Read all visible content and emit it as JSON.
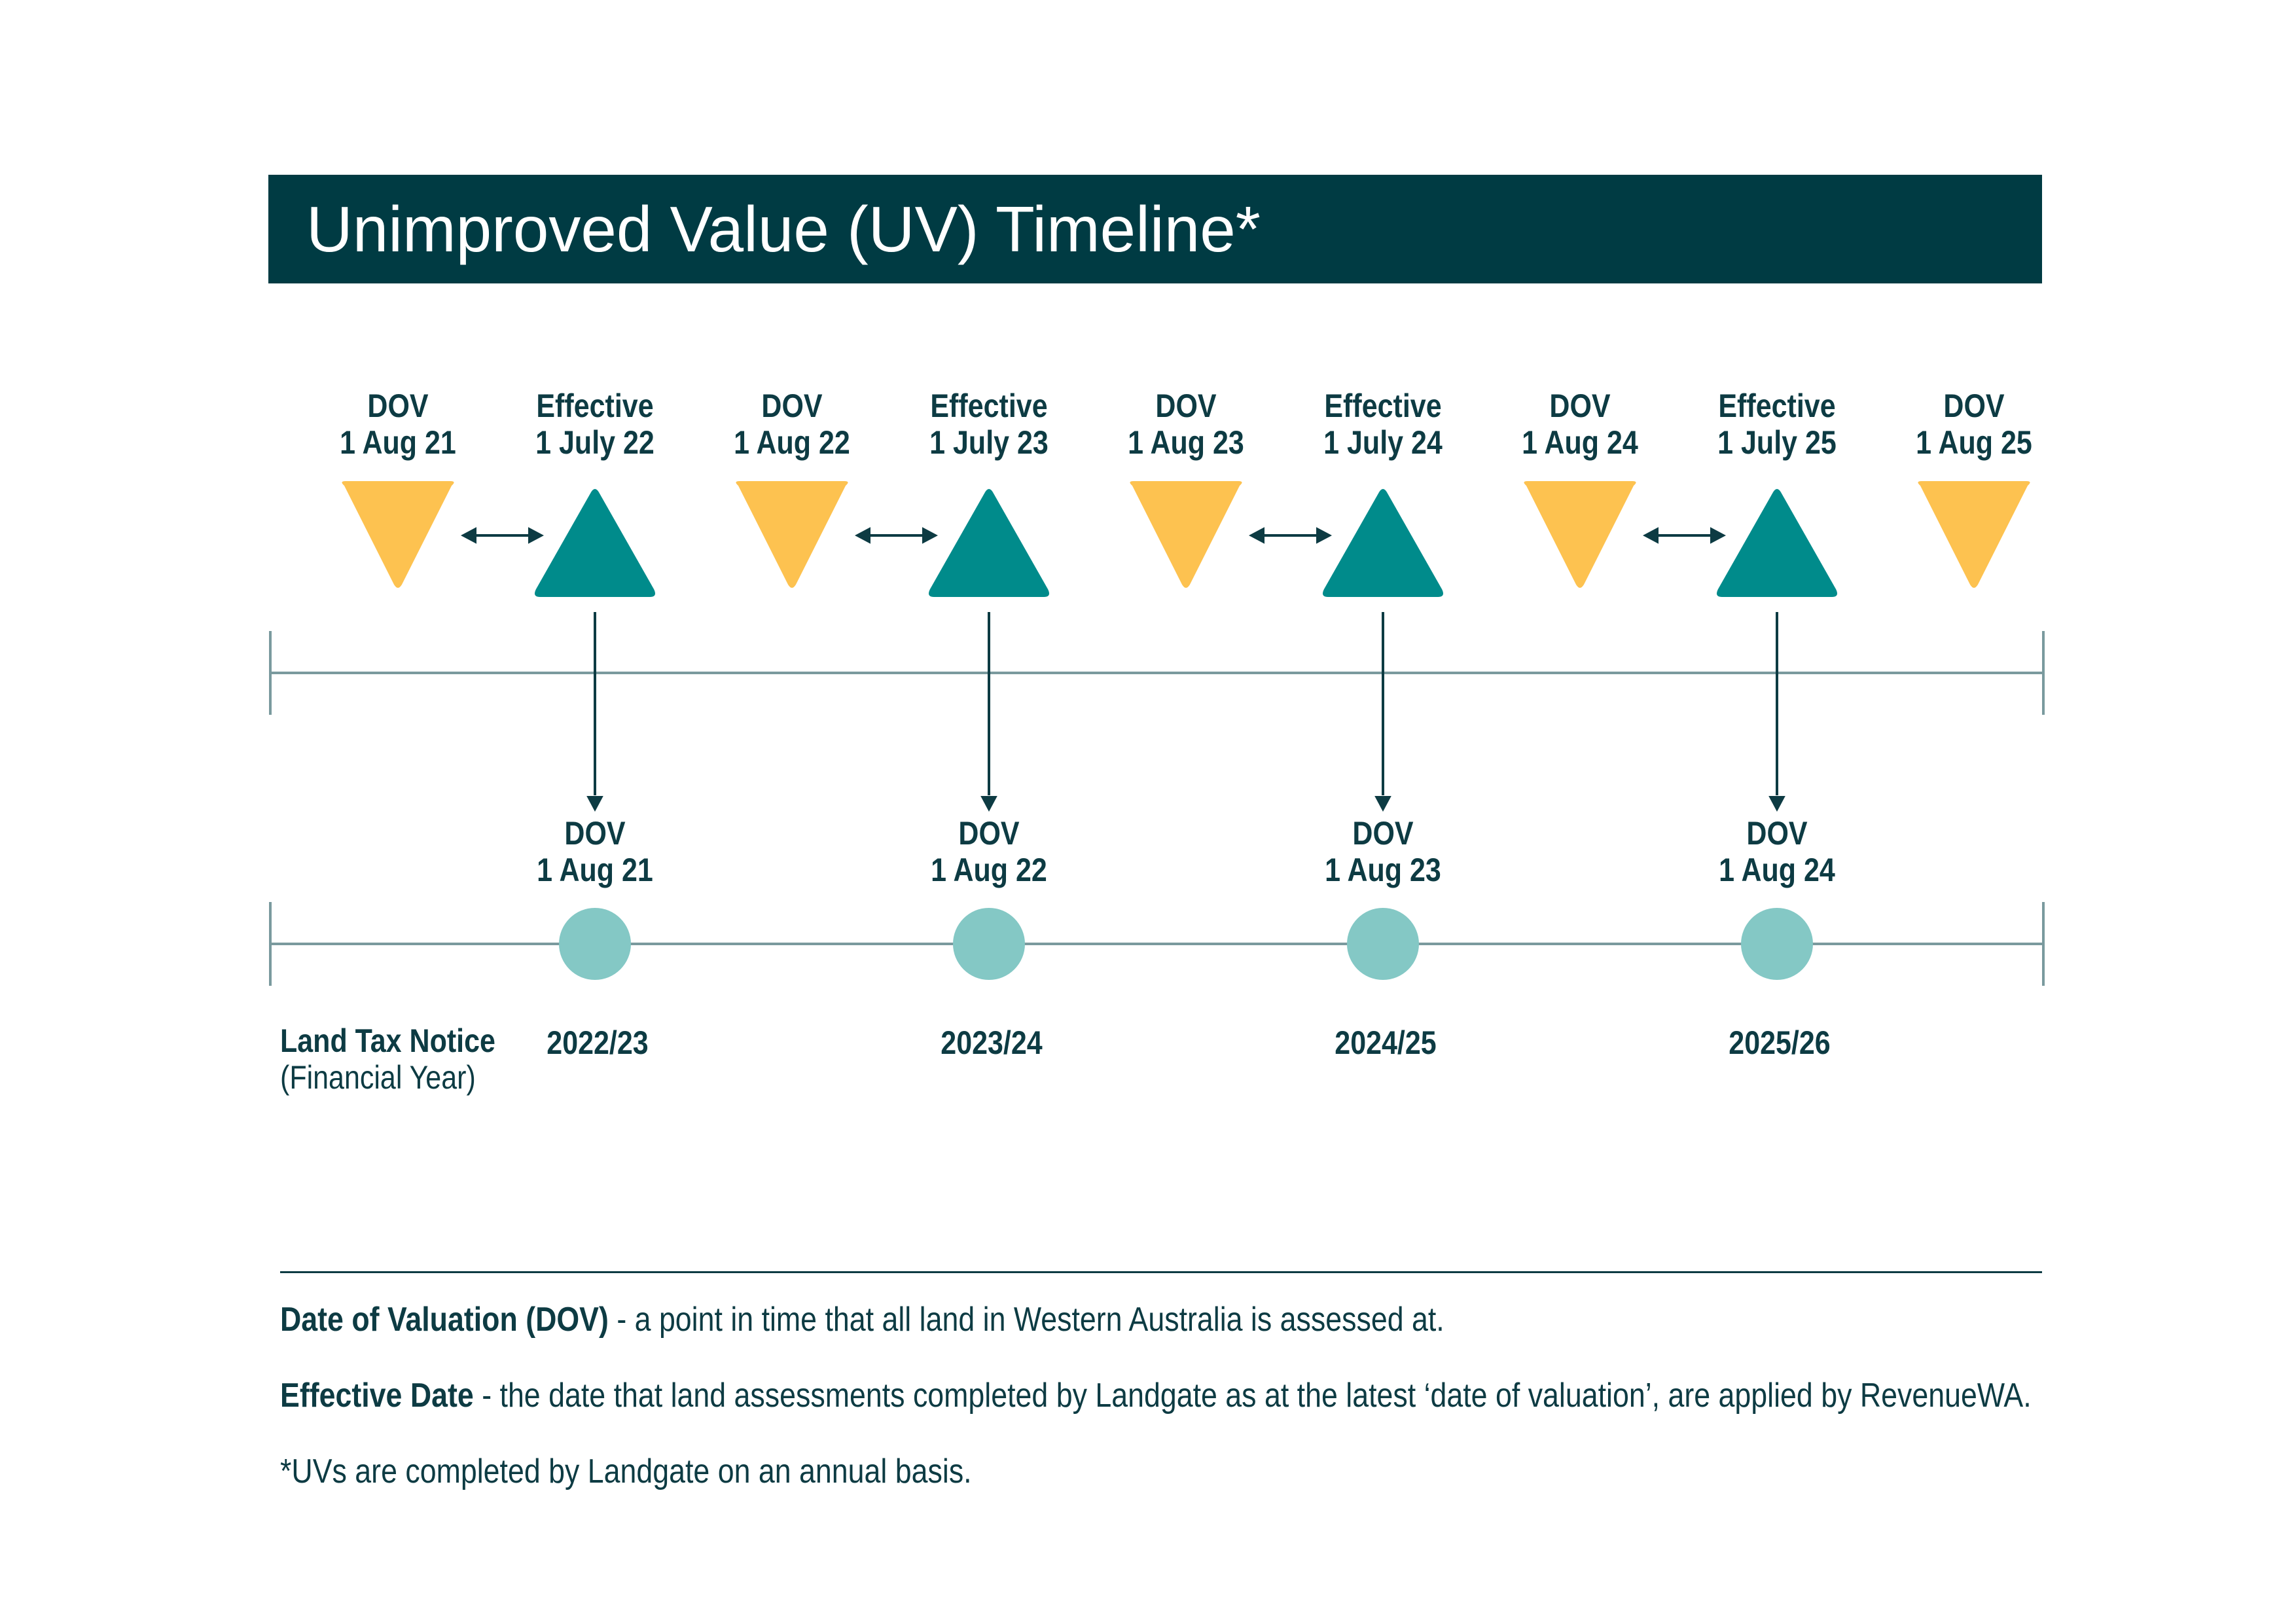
{
  "title": "Unimproved Value (UV) Timeline*",
  "top_markers": [
    {
      "type": "dov",
      "line1": "DOV",
      "line2": "1 Aug 21"
    },
    {
      "type": "effective",
      "line1": "Effective",
      "line2": "1 July 22"
    },
    {
      "type": "dov",
      "line1": "DOV",
      "line2": "1 Aug 22"
    },
    {
      "type": "effective",
      "line1": "Effective",
      "line2": "1 July 23"
    },
    {
      "type": "dov",
      "line1": "DOV",
      "line2": "1 Aug 23"
    },
    {
      "type": "effective",
      "line1": "Effective",
      "line2": "1 July 24"
    },
    {
      "type": "dov",
      "line1": "DOV",
      "line2": "1 Aug 24"
    },
    {
      "type": "effective",
      "line1": "Effective",
      "line2": "1 July 25"
    },
    {
      "type": "dov",
      "line1": "DOV",
      "line2": "1 Aug 25"
    }
  ],
  "bottom_markers": [
    {
      "line1": "DOV",
      "line2": "1 Aug 21",
      "year": "2022/23"
    },
    {
      "line1": "DOV",
      "line2": "1 Aug 22",
      "year": "2023/24"
    },
    {
      "line1": "DOV",
      "line2": "1 Aug 23",
      "year": "2024/25"
    },
    {
      "line1": "DOV",
      "line2": "1 Aug 24",
      "year": "2025/26"
    }
  ],
  "row_label": {
    "title": "Land Tax Notice",
    "subtitle": "(Financial Year)"
  },
  "definitions": [
    {
      "term": "Date of Valuation (DOV)",
      "text": " - a point in time that all land in Western Australia is assessed at."
    },
    {
      "term": "Effective Date",
      "text": " - the date that land assessments completed by Landgate as at the latest ‘date of valuation’, are applied by RevenueWA."
    }
  ],
  "footnote": "*UVs are completed by Landgate on an annual basis.",
  "colors": {
    "header_bg": "#003b43",
    "dov_triangle": "#fdc250",
    "effective_triangle": "#008b8b",
    "circle": "#84c8c5",
    "line": "#7a9a9e",
    "text": "#0d3b43"
  },
  "icons": {
    "dov": "down-triangle-icon",
    "effective": "up-triangle-icon",
    "notice": "circle-icon"
  }
}
